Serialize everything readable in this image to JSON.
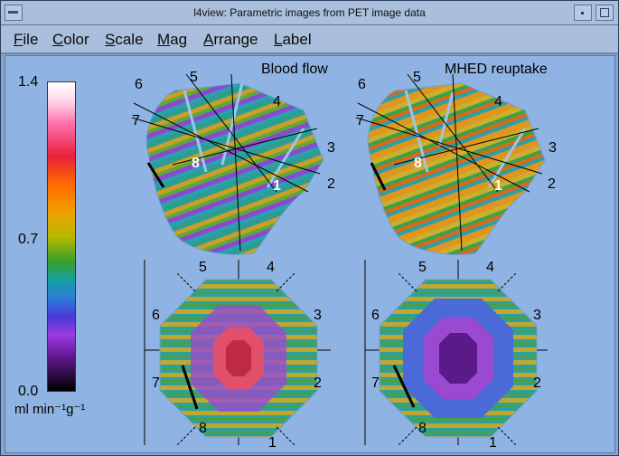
{
  "window": {
    "title": "l4view: Parametric images from PET image data"
  },
  "menu": {
    "items": [
      "File",
      "Color",
      "Scale",
      "Mag",
      "Arrange",
      "Label"
    ]
  },
  "colorbar": {
    "max": "1.4",
    "mid": "0.7",
    "min": "0.0",
    "unit": "ml min⁻¹g⁻¹"
  },
  "panels": {
    "left_title": "Blood flow",
    "right_title": "MHED reuptake",
    "segments_3d": [
      "1",
      "2",
      "3",
      "4",
      "5",
      "6",
      "7",
      "8"
    ],
    "segments_polar": [
      "1",
      "2",
      "3",
      "4",
      "5",
      "6",
      "7",
      "8"
    ]
  }
}
